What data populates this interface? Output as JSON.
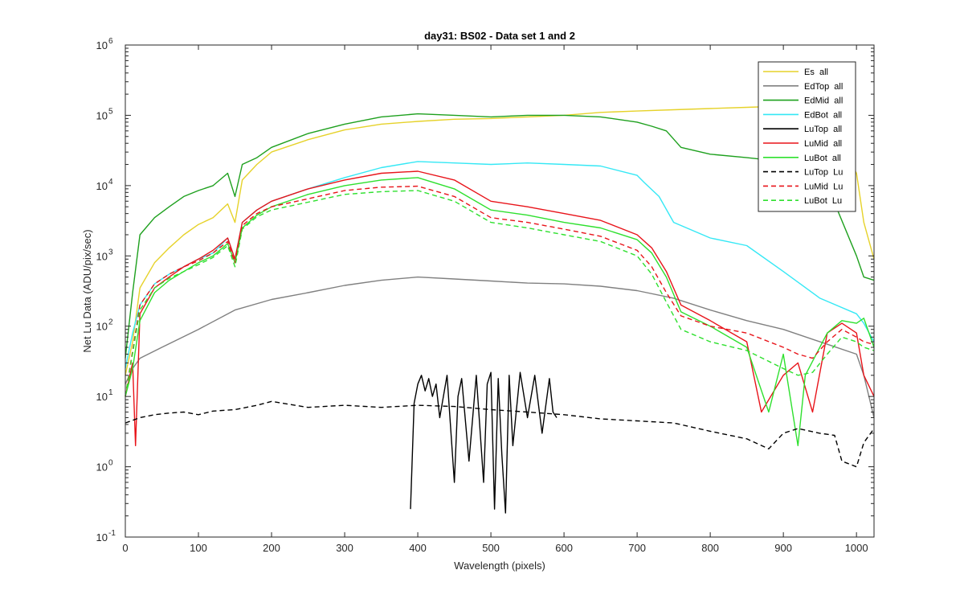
{
  "chart_data": {
    "type": "line",
    "title": "day31: BS02 - Data set 1 and 2",
    "xlabel": "Wavelength (pixels)",
    "ylabel": "Net Lu Data (ADU/pix/sec)",
    "xlim": [
      0,
      1024
    ],
    "ylim": [
      0.1,
      1000000
    ],
    "yscale": "log",
    "grid": false,
    "legend_position": "top-right",
    "x_ticks": [
      0,
      100,
      200,
      300,
      400,
      500,
      600,
      700,
      800,
      900,
      1000
    ],
    "y_ticks": [
      {
        "value": 0.1,
        "base": "10",
        "exp": "-1"
      },
      {
        "value": 1,
        "base": "10",
        "exp": "0"
      },
      {
        "value": 10,
        "base": "10",
        "exp": "1"
      },
      {
        "value": 100,
        "base": "10",
        "exp": "2"
      },
      {
        "value": 1000,
        "base": "10",
        "exp": "3"
      },
      {
        "value": 10000,
        "base": "10",
        "exp": "4"
      },
      {
        "value": 100000,
        "base": "10",
        "exp": "5"
      },
      {
        "value": 1000000,
        "base": "10",
        "exp": "6"
      }
    ],
    "series": [
      {
        "name": "Es  all",
        "color": "#e6d22a",
        "dash": "solid",
        "x": [
          0,
          10,
          20,
          40,
          60,
          80,
          100,
          120,
          140,
          150,
          160,
          180,
          200,
          250,
          300,
          350,
          400,
          450,
          500,
          550,
          600,
          650,
          700,
          750,
          800,
          850,
          900,
          950,
          1000,
          1010,
          1024
        ],
        "y": [
          20,
          60,
          350,
          800,
          1300,
          2000,
          2800,
          3500,
          5500,
          3000,
          12000,
          20000,
          30000,
          45000,
          62000,
          75000,
          82000,
          88000,
          90000,
          95000,
          100000,
          110000,
          115000,
          120000,
          125000,
          130000,
          135000,
          140000,
          15000,
          3000,
          900
        ]
      },
      {
        "name": "EdTop  all",
        "color": "#808080",
        "dash": "solid",
        "x": [
          0,
          10,
          20,
          50,
          100,
          150,
          200,
          250,
          300,
          350,
          400,
          450,
          500,
          550,
          600,
          650,
          700,
          750,
          800,
          850,
          900,
          950,
          1000,
          1010,
          1024
        ],
        "y": [
          15,
          25,
          35,
          50,
          90,
          170,
          240,
          300,
          380,
          450,
          500,
          470,
          440,
          410,
          400,
          370,
          320,
          250,
          170,
          120,
          90,
          60,
          40,
          20,
          5
        ]
      },
      {
        "name": "EdMid  all",
        "color": "#1ea01e",
        "dash": "solid",
        "x": [
          0,
          10,
          20,
          40,
          60,
          80,
          100,
          120,
          140,
          150,
          160,
          180,
          200,
          250,
          300,
          350,
          400,
          450,
          500,
          550,
          600,
          650,
          700,
          720,
          740,
          760,
          800,
          850,
          900,
          950,
          1000,
          1010,
          1024
        ],
        "y": [
          35,
          300,
          2000,
          3500,
          5000,
          7000,
          8500,
          10000,
          15000,
          7000,
          20000,
          25000,
          35000,
          55000,
          75000,
          95000,
          105000,
          100000,
          95000,
          100000,
          100000,
          95000,
          80000,
          70000,
          60000,
          35000,
          28000,
          25000,
          22000,
          18000,
          1000,
          500,
          450
        ]
      },
      {
        "name": "EdBot  all",
        "color": "#35e8f5",
        "dash": "solid",
        "x": [
          0,
          10,
          20,
          40,
          60,
          80,
          100,
          120,
          140,
          150,
          160,
          180,
          200,
          250,
          300,
          350,
          400,
          450,
          500,
          550,
          600,
          650,
          700,
          710,
          730,
          750,
          800,
          850,
          900,
          950,
          1000,
          1010,
          1024
        ],
        "y": [
          25,
          80,
          200,
          400,
          550,
          700,
          900,
          1100,
          1800,
          900,
          3000,
          4500,
          6000,
          9000,
          13000,
          18000,
          22000,
          21000,
          20000,
          21000,
          20000,
          19000,
          14000,
          11000,
          7000,
          3000,
          1800,
          1400,
          600,
          250,
          150,
          110,
          60
        ]
      },
      {
        "name": "LuTop  all",
        "color": "#000000",
        "dash": "solid",
        "x": [
          390,
          395,
          400,
          405,
          410,
          415,
          420,
          425,
          430,
          440,
          450,
          455,
          460,
          470,
          480,
          490,
          495,
          500,
          505,
          510,
          515,
          520,
          525,
          530,
          540,
          550,
          560,
          570,
          580,
          585,
          590
        ],
        "y": [
          0.25,
          8,
          15,
          20,
          12,
          18,
          10,
          15,
          5,
          20,
          0.6,
          10,
          18,
          1.2,
          20,
          0.6,
          15,
          22,
          0.25,
          18,
          1.5,
          0.22,
          20,
          2,
          22,
          5,
          20,
          3,
          18,
          6,
          5
        ]
      },
      {
        "name": "LuMid  all",
        "color": "#e8141a",
        "dash": "solid",
        "x": [
          0,
          10,
          14,
          20,
          40,
          60,
          80,
          100,
          120,
          140,
          150,
          160,
          180,
          200,
          250,
          300,
          350,
          400,
          450,
          500,
          550,
          600,
          650,
          700,
          720,
          740,
          760,
          800,
          850,
          870,
          900,
          920,
          940,
          960,
          980,
          1000,
          1010,
          1024
        ],
        "y": [
          10,
          30,
          2,
          150,
          350,
          500,
          700,
          900,
          1200,
          1800,
          900,
          3000,
          4500,
          6000,
          9000,
          12000,
          15000,
          16000,
          12000,
          6000,
          5000,
          4000,
          3200,
          2000,
          1300,
          600,
          200,
          120,
          60,
          6,
          20,
          30,
          6,
          80,
          110,
          80,
          20,
          10
        ]
      },
      {
        "name": "LuBot  all",
        "color": "#2ee02e",
        "dash": "solid",
        "x": [
          0,
          10,
          20,
          40,
          60,
          80,
          100,
          120,
          140,
          150,
          160,
          180,
          200,
          250,
          300,
          350,
          400,
          450,
          500,
          550,
          600,
          650,
          700,
          720,
          740,
          760,
          800,
          850,
          880,
          900,
          920,
          930,
          960,
          980,
          1000,
          1010,
          1024
        ],
        "y": [
          10,
          25,
          120,
          300,
          450,
          600,
          800,
          1000,
          1500,
          800,
          2500,
          3800,
          5000,
          7500,
          10000,
          12000,
          13000,
          9000,
          4500,
          3800,
          3000,
          2500,
          1700,
          1100,
          500,
          160,
          100,
          50,
          6,
          40,
          2,
          20,
          80,
          120,
          110,
          130,
          50
        ]
      },
      {
        "name": "LuTop  Lu",
        "color": "#000000",
        "dash": "dashed",
        "x": [
          0,
          20,
          40,
          60,
          80,
          100,
          120,
          150,
          180,
          200,
          250,
          300,
          350,
          400,
          450,
          500,
          550,
          600,
          650,
          700,
          750,
          800,
          850,
          880,
          900,
          920,
          950,
          970,
          980,
          1000,
          1010,
          1024
        ],
        "y": [
          4.2,
          5,
          5.5,
          5.8,
          6,
          5.5,
          6.2,
          6.5,
          7.5,
          8.5,
          7,
          7.5,
          7,
          7.5,
          7.2,
          6.5,
          6,
          5.5,
          4.8,
          4.5,
          4.2,
          3.2,
          2.5,
          1.8,
          3,
          3.5,
          3,
          2.8,
          1.2,
          1,
          2.2,
          3.5
        ]
      },
      {
        "name": "LuMid  Lu",
        "color": "#e8141a",
        "dash": "dashed",
        "x": [
          0,
          20,
          40,
          60,
          80,
          100,
          120,
          140,
          150,
          160,
          180,
          200,
          250,
          300,
          350,
          400,
          450,
          500,
          550,
          600,
          650,
          700,
          720,
          740,
          760,
          800,
          850,
          900,
          920,
          940,
          960,
          980,
          1000,
          1010,
          1024
        ],
        "y": [
          10,
          200,
          400,
          550,
          700,
          850,
          1100,
          1600,
          800,
          2700,
          4000,
          5000,
          6500,
          8500,
          9500,
          9800,
          7000,
          3500,
          3000,
          2400,
          1900,
          1200,
          700,
          300,
          140,
          100,
          80,
          50,
          40,
          35,
          60,
          90,
          70,
          60,
          55
        ]
      },
      {
        "name": "LuBot  Lu",
        "color": "#2ee02e",
        "dash": "dashed",
        "x": [
          0,
          20,
          40,
          60,
          80,
          100,
          120,
          140,
          150,
          160,
          180,
          200,
          250,
          300,
          350,
          400,
          450,
          500,
          550,
          600,
          650,
          700,
          720,
          740,
          760,
          800,
          850,
          900,
          920,
          940,
          960,
          980,
          1000,
          1010,
          1024
        ],
        "y": [
          10,
          170,
          350,
          480,
          600,
          750,
          950,
          1400,
          700,
          2400,
          3600,
          4500,
          5800,
          7500,
          8200,
          8500,
          6000,
          3000,
          2500,
          2000,
          1600,
          1000,
          550,
          220,
          90,
          60,
          45,
          25,
          20,
          22,
          40,
          70,
          60,
          50,
          45
        ]
      }
    ]
  }
}
